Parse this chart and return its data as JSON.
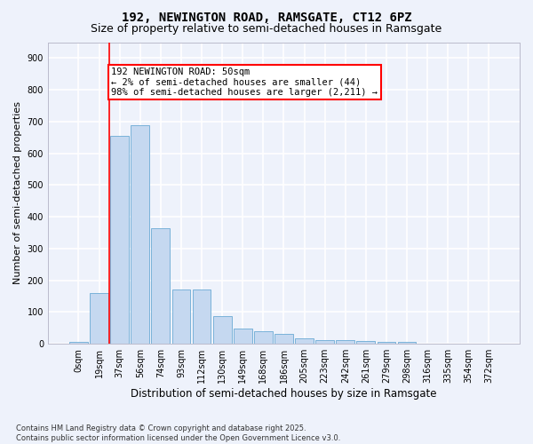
{
  "title": "192, NEWINGTON ROAD, RAMSGATE, CT12 6PZ",
  "subtitle": "Size of property relative to semi-detached houses in Ramsgate",
  "xlabel": "Distribution of semi-detached houses by size in Ramsgate",
  "ylabel": "Number of semi-detached properties",
  "categories": [
    "0sqm",
    "19sqm",
    "37sqm",
    "56sqm",
    "74sqm",
    "93sqm",
    "112sqm",
    "130sqm",
    "149sqm",
    "168sqm",
    "186sqm",
    "205sqm",
    "223sqm",
    "242sqm",
    "261sqm",
    "279sqm",
    "298sqm",
    "316sqm",
    "335sqm",
    "354sqm",
    "372sqm"
  ],
  "values": [
    7,
    160,
    655,
    688,
    363,
    170,
    170,
    88,
    49,
    40,
    31,
    17,
    13,
    11,
    10,
    6,
    5,
    1,
    0,
    0,
    0
  ],
  "bar_color": "#c5d8f0",
  "bar_edge_color": "#6aaad4",
  "vline_x": 1.5,
  "vline_color": "red",
  "annotation_text": "192 NEWINGTON ROAD: 50sqm\n← 2% of semi-detached houses are smaller (44)\n98% of semi-detached houses are larger (2,211) →",
  "annotation_box_color": "white",
  "annotation_box_edge_color": "red",
  "ylim": [
    0,
    950
  ],
  "yticks": [
    0,
    100,
    200,
    300,
    400,
    500,
    600,
    700,
    800,
    900
  ],
  "footnote": "Contains HM Land Registry data © Crown copyright and database right 2025.\nContains public sector information licensed under the Open Government Licence v3.0.",
  "bg_color": "#eef2fb",
  "grid_color": "white",
  "title_fontsize": 10,
  "subtitle_fontsize": 9,
  "xlabel_fontsize": 8.5,
  "ylabel_fontsize": 8,
  "tick_fontsize": 7,
  "footnote_fontsize": 6,
  "annot_fontsize": 7.5
}
